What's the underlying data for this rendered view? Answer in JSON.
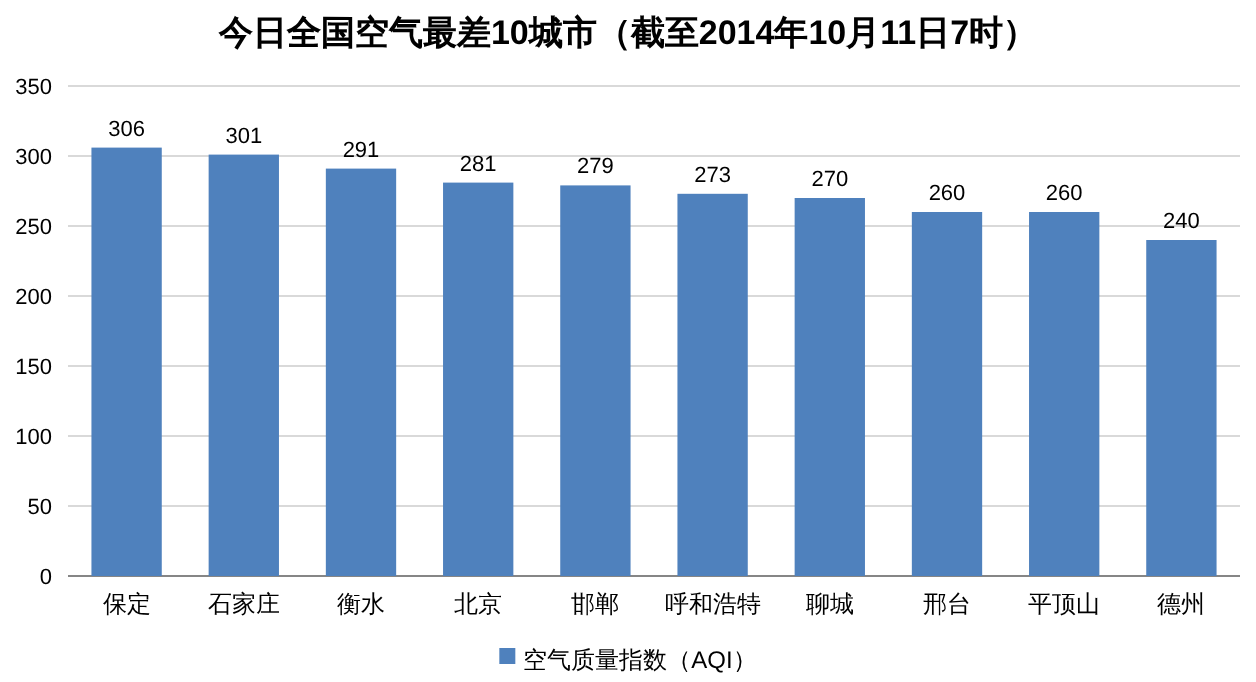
{
  "chart_data": {
    "type": "bar",
    "title": "今日全国空气最差10城市（截至2014年10月11日7时）",
    "categories": [
      "保定",
      "石家庄",
      "衡水",
      "北京",
      "邯郸",
      "呼和浩特",
      "聊城",
      "邢台",
      "平顶山",
      "德州"
    ],
    "series": [
      {
        "name": "空气质量指数（AQI）",
        "color": "#4f81bd",
        "values": [
          306,
          301,
          291,
          281,
          279,
          273,
          270,
          260,
          260,
          240
        ]
      }
    ],
    "ylim": [
      0,
      350
    ],
    "yticks": [
      0,
      50,
      100,
      150,
      200,
      250,
      300,
      350
    ],
    "grid": "y",
    "legend": "bottom",
    "data_labels": true
  }
}
